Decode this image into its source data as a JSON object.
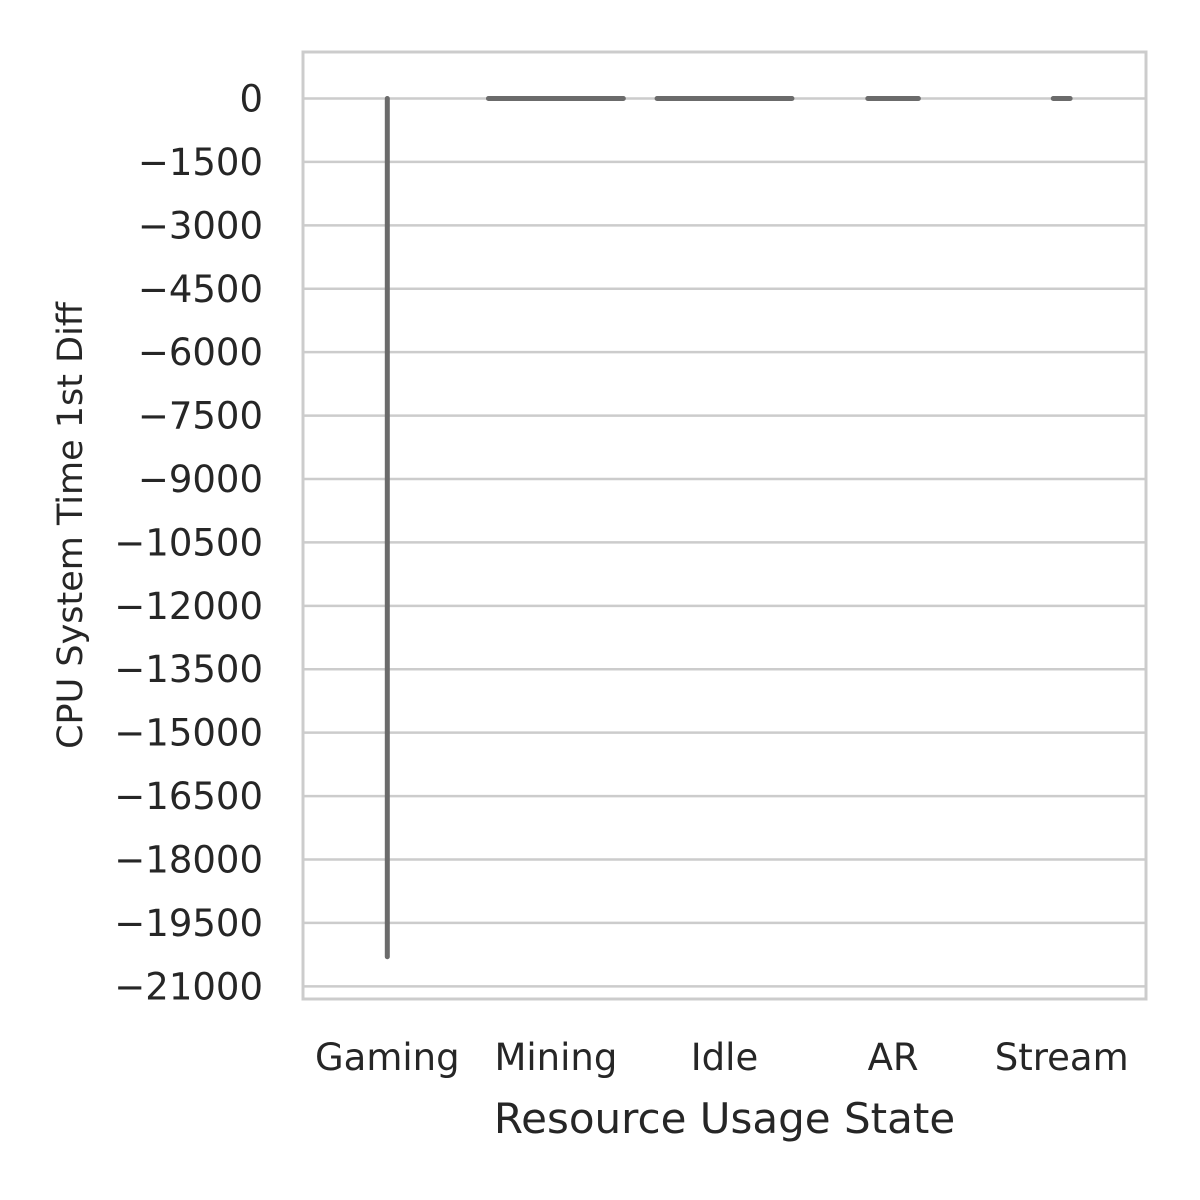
{
  "chart_data": {
    "type": "violin",
    "title": "",
    "xlabel": "Resource Usage State",
    "ylabel": "CPU System Time 1st Diff",
    "categories": [
      "Gaming",
      "Mining",
      "Idle",
      "AR",
      "Stream"
    ],
    "series": [
      {
        "category": "Gaming",
        "min": -20300,
        "max": 0,
        "spread": [
          0,
          0
        ]
      },
      {
        "category": "Mining",
        "min": 0,
        "max": 0,
        "spread": [
          -0.4,
          0.4
        ]
      },
      {
        "category": "Idle",
        "min": 0,
        "max": 0,
        "spread": [
          -0.4,
          0.4
        ]
      },
      {
        "category": "AR",
        "min": 0,
        "max": 0,
        "spread": [
          -0.15,
          0.15
        ]
      },
      {
        "category": "Stream",
        "min": 0,
        "max": 0,
        "spread": [
          -0.05,
          0.05
        ]
      }
    ],
    "y_ticks": [
      0,
      -1500,
      -3000,
      -4500,
      -6000,
      -7500,
      -9000,
      -10500,
      -12000,
      -13500,
      -15000,
      -16500,
      -18000,
      -19500,
      -21000
    ],
    "y_tick_labels": [
      "0",
      "−1500",
      "−3000",
      "−4500",
      "−6000",
      "−7500",
      "−9000",
      "−10500",
      "−12000",
      "−13500",
      "−15000",
      "−16500",
      "−18000",
      "−19500",
      "−21000"
    ],
    "ylim": [
      -21300,
      1100
    ],
    "grid": true,
    "colors": {
      "violin": "#6b6b6b",
      "grid": "#cccccc",
      "frame": "#cccccc",
      "text": "#262626"
    }
  }
}
